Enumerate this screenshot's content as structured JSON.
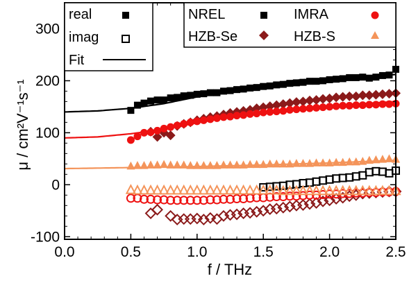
{
  "chart_data": {
    "type": "scatter",
    "xlabel": "f / THz",
    "ylabel": "μ / cm²V⁻¹s⁻¹",
    "xlim": [
      0.0,
      2.5
    ],
    "ylim": [
      -105,
      350
    ],
    "xticks": [
      "0.0",
      "0.5",
      "1.0",
      "1.5",
      "2.0",
      "2.5"
    ],
    "yticks": [
      "-100",
      "0",
      "100",
      "200",
      "300"
    ],
    "grid": false,
    "legend_style": {
      "real": "real",
      "imag": "imag",
      "fit": "Fit"
    },
    "series": [
      {
        "name": "NREL",
        "color": "#000000",
        "marker": "square",
        "real": {
          "x": [
            0.5,
            0.55,
            0.6,
            0.65,
            0.7,
            0.75,
            0.8,
            0.85,
            0.9,
            0.95,
            1.0,
            1.05,
            1.1,
            1.15,
            1.2,
            1.25,
            1.3,
            1.35,
            1.4,
            1.45,
            1.5,
            1.55,
            1.6,
            1.65,
            1.7,
            1.75,
            1.8,
            1.85,
            1.9,
            1.95,
            2.0,
            2.05,
            2.1,
            2.15,
            2.2,
            2.25,
            2.3,
            2.35,
            2.4,
            2.45,
            2.5
          ],
          "y": [
            143,
            153,
            157,
            161,
            163,
            163,
            167,
            168,
            171,
            172,
            174,
            175,
            177,
            177,
            180,
            181,
            183,
            184,
            186,
            187,
            189,
            190,
            192,
            193,
            195,
            196,
            197,
            199,
            199,
            200,
            202,
            203,
            204,
            206,
            206,
            207,
            205,
            207,
            210,
            211,
            222
          ]
        },
        "imag": {
          "x": [
            1.5,
            1.55,
            1.6,
            1.65,
            1.7,
            1.75,
            1.8,
            1.85,
            1.9,
            1.95,
            2.0,
            2.05,
            2.1,
            2.15,
            2.2,
            2.25,
            2.3,
            2.35,
            2.4,
            2.45,
            2.5
          ],
          "y": [
            -5,
            -4,
            -3,
            -2,
            0,
            1,
            3,
            4,
            6,
            8,
            10,
            12,
            13,
            14,
            16,
            18,
            24,
            26,
            25,
            22,
            27
          ]
        },
        "fit": {
          "x": [
            0.0,
            0.25,
            0.5,
            0.75,
            1.0,
            1.25,
            1.5,
            1.75,
            2.0,
            2.25,
            2.5
          ],
          "y": [
            140,
            142,
            147,
            156,
            169,
            182,
            193,
            201,
            205,
            209,
            212
          ]
        }
      },
      {
        "name": "HZB-Se",
        "color": "#8b1a1a",
        "marker": "diamond",
        "real": {
          "x": [
            0.65,
            0.7,
            0.75,
            0.8,
            0.85,
            0.9,
            0.95,
            1.0,
            1.05,
            1.1,
            1.15,
            1.2,
            1.25,
            1.3,
            1.35,
            1.4,
            1.45,
            1.5,
            1.55,
            1.6,
            1.65,
            1.7,
            1.75,
            1.8,
            1.85,
            1.9,
            1.95,
            2.0,
            2.05,
            2.1,
            2.15,
            2.2,
            2.25,
            2.3,
            2.35,
            2.4,
            2.45,
            2.5
          ],
          "y": [
            102,
            92,
            100,
            95,
            113,
            117,
            120,
            124,
            127,
            130,
            132,
            135,
            138,
            140,
            142,
            144,
            147,
            149,
            151,
            153,
            155,
            157,
            159,
            160,
            162,
            163,
            165,
            166,
            168,
            169,
            170,
            170,
            172,
            172,
            173,
            174,
            175,
            176
          ]
        },
        "imag": {
          "x": [
            0.65,
            0.7,
            0.8,
            0.85,
            0.9,
            0.95,
            1.0,
            1.05,
            1.1,
            1.15,
            1.2,
            1.25,
            1.3,
            1.35,
            1.4,
            1.45,
            1.5,
            1.55,
            1.6,
            1.65,
            1.7,
            1.75,
            1.8,
            1.85,
            1.9,
            1.95,
            2.0,
            2.05,
            2.1,
            2.15,
            2.2,
            2.25,
            2.3,
            2.35,
            2.4,
            2.45,
            2.5
          ],
          "y": [
            -55,
            -48,
            -60,
            -67,
            -66,
            -66,
            -65,
            -67,
            -64,
            -66,
            -60,
            -58,
            -57,
            -55,
            -54,
            -52,
            -50,
            -47,
            -46,
            -44,
            -42,
            -40,
            -39,
            -37,
            -35,
            -32,
            -30,
            -27,
            -25,
            -22,
            -20,
            -17,
            -16,
            -15,
            -14,
            -13,
            -13
          ]
        }
      },
      {
        "name": "IMRA",
        "color": "#ee1111",
        "marker": "circle",
        "real": {
          "x": [
            0.5,
            0.55,
            0.6,
            0.65,
            0.7,
            0.75,
            0.8,
            0.85,
            0.9,
            0.95,
            1.0,
            1.05,
            1.1,
            1.15,
            1.2,
            1.25,
            1.3,
            1.35,
            1.4,
            1.45,
            1.5,
            1.55,
            1.6,
            1.65,
            1.7,
            1.75,
            1.8,
            1.85,
            1.9,
            1.95,
            2.0,
            2.05,
            2.1,
            2.15,
            2.2,
            2.25,
            2.3,
            2.35,
            2.4,
            2.45,
            2.5
          ],
          "y": [
            86,
            93,
            100,
            101,
            104,
            108,
            111,
            114,
            117,
            120,
            122,
            124,
            126,
            128,
            130,
            131,
            133,
            134,
            136,
            137,
            139,
            140,
            141,
            142,
            144,
            145,
            146,
            147,
            148,
            149,
            150,
            151,
            152,
            152,
            153,
            153,
            154,
            154,
            155,
            155,
            156
          ]
        },
        "imag": {
          "x": [
            0.5,
            0.55,
            0.6,
            0.65,
            0.7,
            0.75,
            0.8,
            0.85,
            0.9,
            0.95,
            1.0,
            1.05,
            1.1,
            1.15,
            1.2,
            1.25,
            1.3,
            1.35,
            1.4,
            1.45,
            1.5,
            1.55,
            1.6,
            1.65,
            1.7,
            1.75,
            1.8,
            1.85,
            1.9,
            1.95,
            2.0,
            2.05,
            2.1,
            2.15,
            2.2,
            2.25,
            2.3,
            2.35,
            2.4,
            2.45,
            2.5
          ],
          "y": [
            -26,
            -26,
            -28,
            -28,
            -29,
            -29,
            -30,
            -30,
            -30,
            -30,
            -30,
            -30,
            -29,
            -29,
            -28,
            -28,
            -27,
            -27,
            -26,
            -25,
            -25,
            -24,
            -23,
            -23,
            -22,
            -22,
            -21,
            -20,
            -20,
            -19,
            -18,
            -18,
            -17,
            -17,
            -16,
            -16,
            -15,
            -15,
            -14,
            -14,
            -13
          ]
        },
        "fit": {
          "x": [
            0.0,
            0.25,
            0.5,
            0.75,
            1.0,
            1.25,
            1.5,
            1.75,
            2.0,
            2.25,
            2.5
          ],
          "y": [
            90,
            92,
            98,
            107,
            119,
            130,
            140,
            147,
            152,
            156,
            160
          ]
        }
      },
      {
        "name": "HZB-S",
        "color": "#f4945a",
        "marker": "triangle",
        "real": {
          "x": [
            0.5,
            0.55,
            0.6,
            0.65,
            0.7,
            0.75,
            0.8,
            0.85,
            0.9,
            0.95,
            1.0,
            1.05,
            1.1,
            1.15,
            1.2,
            1.25,
            1.3,
            1.35,
            1.4,
            1.45,
            1.5,
            1.55,
            1.6,
            1.65,
            1.7,
            1.75,
            1.8,
            1.85,
            1.9,
            1.95,
            2.0,
            2.05,
            2.1,
            2.15,
            2.2,
            2.25,
            2.3,
            2.35,
            2.4,
            2.45,
            2.5
          ],
          "y": [
            36,
            37,
            37,
            38,
            38,
            39,
            38,
            38,
            38,
            37,
            37,
            37,
            37,
            37,
            38,
            38,
            38,
            38,
            39,
            39,
            39,
            40,
            40,
            40,
            40,
            41,
            41,
            41,
            42,
            42,
            42,
            43,
            43,
            44,
            44,
            45,
            47,
            48,
            49,
            50,
            49
          ]
        },
        "imag": {
          "x": [
            0.5,
            0.55,
            0.6,
            0.65,
            0.7,
            0.75,
            0.8,
            0.85,
            0.9,
            0.95,
            1.0,
            1.05,
            1.1,
            1.15,
            1.2,
            1.25,
            1.3,
            1.35,
            1.4,
            1.45,
            1.5,
            1.55,
            1.6,
            1.65,
            1.7,
            1.75,
            1.8,
            1.85,
            1.9,
            1.95,
            2.0,
            2.05,
            2.1,
            2.15,
            2.2,
            2.25,
            2.3,
            2.35,
            2.4,
            2.45,
            2.5
          ],
          "y": [
            -10,
            -11,
            -11,
            -11,
            -11,
            -11,
            -11,
            -11,
            -11,
            -11,
            -11,
            -11,
            -11,
            -11,
            -11,
            -11,
            -11,
            -11,
            -11,
            -11,
            -11,
            -11,
            -11,
            -12,
            -12,
            -12,
            -12,
            -12,
            -12,
            -12,
            -12,
            -12,
            -12,
            -12,
            -12,
            -12,
            -12,
            -12,
            -12,
            -12,
            -12
          ]
        },
        "fit": {
          "x": [
            0.0,
            0.5,
            1.0,
            1.5,
            2.0,
            2.5
          ],
          "y": [
            31,
            33,
            35,
            38,
            42,
            47
          ]
        }
      }
    ]
  }
}
